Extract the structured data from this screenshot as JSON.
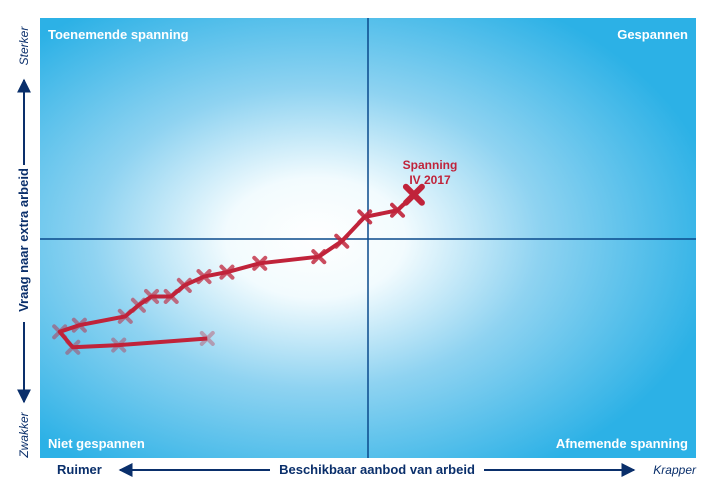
{
  "chart_data": {
    "type": "line",
    "title": "",
    "xlabel": "Beschikbaar aanbod van arbeid",
    "ylabel": "Vraag naar extra arbeid",
    "x_axis_ends": {
      "left": "Ruimer",
      "right": "Krapper"
    },
    "y_axis_ends": {
      "top": "Sterker",
      "bottom": "Zwakker"
    },
    "quadrants": {
      "top_left": "Toenemende spanning",
      "top_right": "Gespannen",
      "bottom_left": "Niet gespannen",
      "bottom_right": "Afnemende spanning"
    },
    "xlim": [
      -10,
      10
    ],
    "ylim": [
      -10,
      10
    ],
    "grid": false,
    "annotation": {
      "line1": "Spanning",
      "line2": "IV 2017"
    },
    "colors": {
      "background": "#2cb1e6",
      "line": "#c0233a",
      "axis": "#0a4a8c",
      "text_dark": "#0a2f6b"
    },
    "series": [
      {
        "points": [
          {
            "x": -4.9,
            "y": -4.5
          },
          {
            "x": -7.6,
            "y": -4.8
          },
          {
            "x": -9.0,
            "y": -4.9
          },
          {
            "x": -9.4,
            "y": -4.2
          },
          {
            "x": -8.8,
            "y": -3.9
          },
          {
            "x": -7.4,
            "y": -3.5
          },
          {
            "x": -7.0,
            "y": -3.0
          },
          {
            "x": -6.6,
            "y": -2.6
          },
          {
            "x": -6.0,
            "y": -2.6
          },
          {
            "x": -5.6,
            "y": -2.1
          },
          {
            "x": -5.0,
            "y": -1.7
          },
          {
            "x": -4.3,
            "y": -1.5
          },
          {
            "x": -3.3,
            "y": -1.1
          },
          {
            "x": -1.5,
            "y": -0.8
          },
          {
            "x": -0.8,
            "y": -0.1
          },
          {
            "x": -0.1,
            "y": 1.0
          },
          {
            "x": 0.9,
            "y": 1.3
          },
          {
            "x": 1.4,
            "y": 2.0
          }
        ]
      }
    ]
  }
}
